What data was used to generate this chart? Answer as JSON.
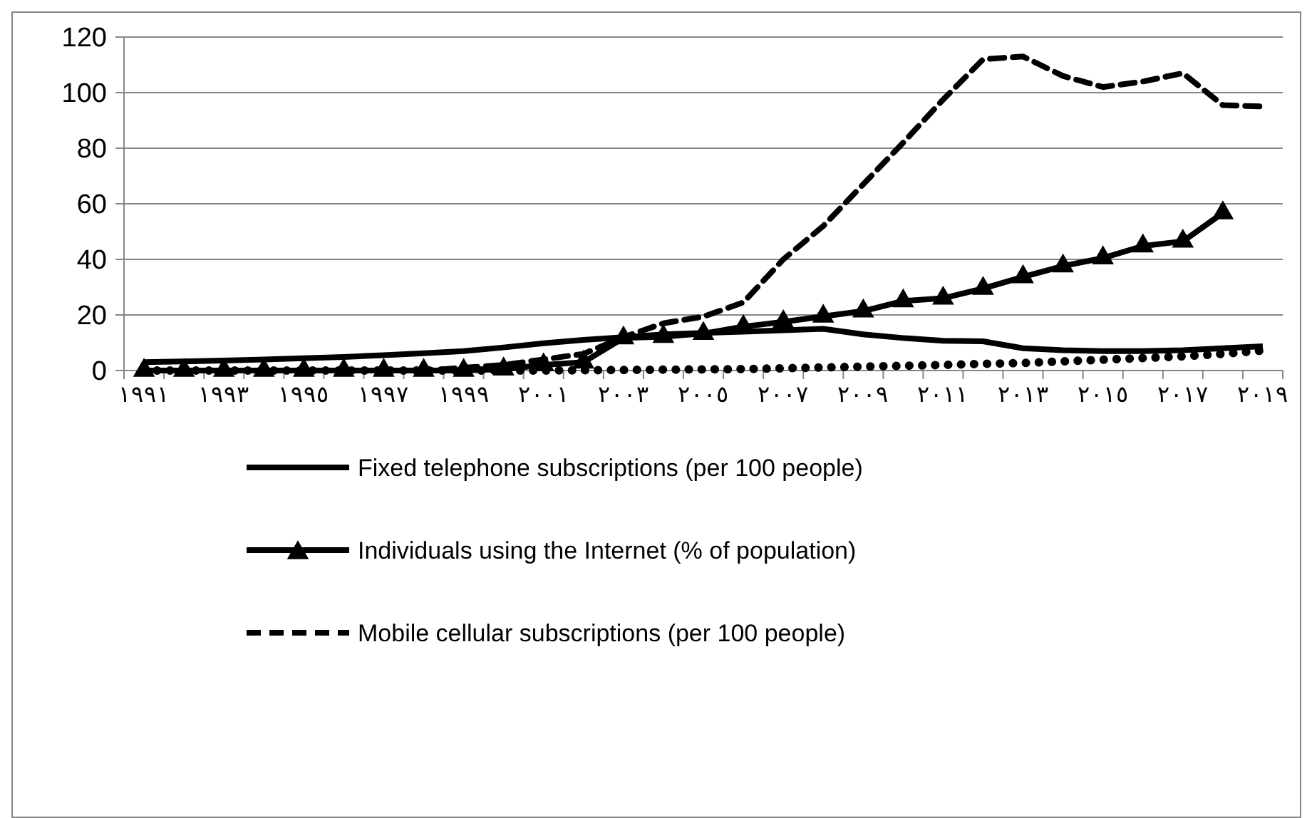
{
  "chart_data": {
    "type": "line",
    "categories": [
      "١٩٩١",
      null,
      "١٩٩٣",
      null,
      "١٩٩٥",
      null,
      "١٩٩٧",
      null,
      "١٩٩٩",
      null,
      "٢٠٠١",
      null,
      "٢٠٠٣",
      null,
      "٢٠٠٥",
      null,
      "٢٠٠٧",
      null,
      "٢٠٠٩",
      null,
      "٢٠١١",
      null,
      "٢٠١٣",
      null,
      "٢٠١٥",
      null,
      "٢٠١٧",
      null,
      "٢٠١٩"
    ],
    "series": [
      {
        "name": "Fixed telephone subscriptions (per 100 people)",
        "color": "#000000",
        "line_style": "solid",
        "marker": "none",
        "values": [
          3,
          3.3,
          3.6,
          4,
          4.4,
          4.9,
          5.5,
          6.2,
          7,
          8.3,
          9.8,
          11,
          12,
          13,
          13.5,
          14,
          14.5,
          15,
          13,
          11.7,
          10.7,
          10.5,
          8,
          7.3,
          7,
          7,
          7.3,
          8,
          8.7
        ]
      },
      {
        "name": "Individuals using the Internet (% of population)",
        "color": "#000000",
        "line_style": "solid",
        "marker": "triangle",
        "values": [
          0,
          0,
          0,
          0,
          0,
          0,
          0,
          0,
          0,
          0.5,
          2,
          3,
          11.7,
          12.2,
          13.3,
          15.8,
          17.5,
          19.5,
          21.4,
          25,
          26,
          29.5,
          33.7,
          37.6,
          40.5,
          44.8,
          46.5,
          56.7,
          null
        ]
      },
      {
        "name": "Mobile cellular subscriptions (per 100 people)",
        "color": "#000000",
        "line_style": "dashed",
        "marker": "none",
        "values": [
          0,
          0,
          0,
          0,
          0,
          0,
          0,
          0,
          1,
          2,
          4,
          6,
          12,
          17,
          19.4,
          24.5,
          40,
          52,
          67,
          82,
          97.5,
          112,
          113,
          106,
          102,
          104,
          107,
          95.5,
          95
        ]
      },
      {
        "color": "#000000",
        "line_style": "dotted",
        "marker": "none",
        "values": [
          0,
          0,
          0,
          0,
          0,
          0,
          0,
          0,
          0,
          0,
          0,
          0.1,
          0.2,
          0.3,
          0.4,
          0.5,
          0.8,
          1.1,
          1.4,
          1.7,
          2,
          2.4,
          2.7,
          3.3,
          3.9,
          4.5,
          5.1,
          6,
          7.2
        ]
      }
    ],
    "ylim": [
      0,
      120
    ],
    "yticks": [
      0,
      20,
      40,
      60,
      80,
      100,
      120
    ],
    "grid": "y",
    "legend": "bottom"
  }
}
